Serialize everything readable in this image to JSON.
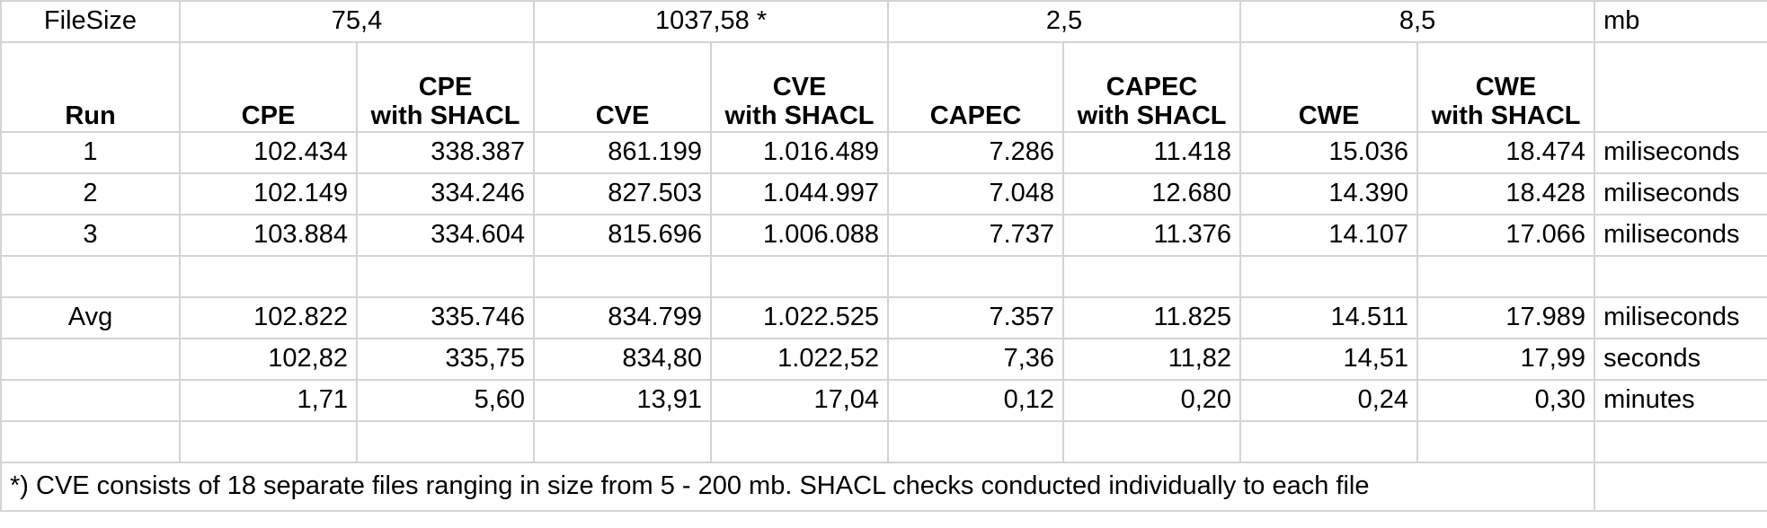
{
  "filesize": {
    "label": "FileSize",
    "cpe": "75,4",
    "cve": "1037,58 *",
    "capec": "2,5",
    "cwe": "8,5",
    "unit": "mb"
  },
  "header": {
    "run": "Run",
    "cols": [
      {
        "line1": "",
        "line2": "CPE"
      },
      {
        "line1": "CPE",
        "line2": "with SHACL"
      },
      {
        "line1": "",
        "line2": "CVE"
      },
      {
        "line1": "CVE",
        "line2": "with SHACL"
      },
      {
        "line1": "",
        "line2": "CAPEC"
      },
      {
        "line1": "CAPEC",
        "line2": "with SHACL"
      },
      {
        "line1": "",
        "line2": "CWE"
      },
      {
        "line1": "CWE",
        "line2": "with SHACL"
      }
    ]
  },
  "runs": [
    {
      "run": "1",
      "values": [
        "102.434",
        "338.387",
        "861.199",
        "1.016.489",
        "7.286",
        "11.418",
        "15.036",
        "18.474"
      ],
      "unit": "miliseconds"
    },
    {
      "run": "2",
      "values": [
        "102.149",
        "334.246",
        "827.503",
        "1.044.997",
        "7.048",
        "12.680",
        "14.390",
        "18.428"
      ],
      "unit": "miliseconds"
    },
    {
      "run": "3",
      "values": [
        "103.884",
        "334.604",
        "815.696",
        "1.006.088",
        "7.737",
        "11.376",
        "14.107",
        "17.066"
      ],
      "unit": "miliseconds"
    }
  ],
  "summary": [
    {
      "label": "Avg",
      "values": [
        "102.822",
        "335.746",
        "834.799",
        "1.022.525",
        "7.357",
        "11.825",
        "14.511",
        "17.989"
      ],
      "unit": "miliseconds"
    },
    {
      "label": "",
      "values": [
        "102,82",
        "335,75",
        "834,80",
        "1.022,52",
        "7,36",
        "11,82",
        "14,51",
        "17,99"
      ],
      "unit": "seconds"
    },
    {
      "label": "",
      "values": [
        "1,71",
        "5,60",
        "13,91",
        "17,04",
        "0,12",
        "0,20",
        "0,24",
        "0,30"
      ],
      "unit": "minutes"
    }
  ],
  "footnote": "*) CVE consists of 18 separate files ranging in size from 5 - 200 mb. SHACL checks conducted individually to each file"
}
